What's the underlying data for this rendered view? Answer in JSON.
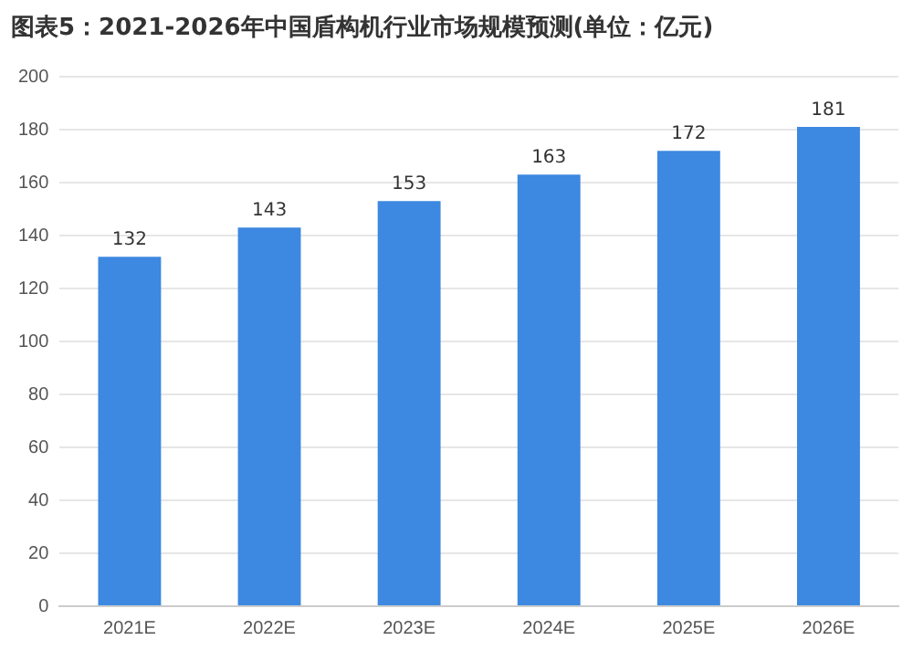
{
  "chart_data": {
    "type": "bar",
    "title": "图表5：2021-2026年中国盾构机行业市场规模预测(单位：亿元)",
    "categories": [
      "2021E",
      "2022E",
      "2023E",
      "2024E",
      "2025E",
      "2026E"
    ],
    "values": [
      132,
      143,
      153,
      163,
      172,
      181
    ],
    "color": "#3d88e0",
    "ylim": [
      0,
      200
    ],
    "yticks": [
      0,
      20,
      40,
      60,
      80,
      100,
      120,
      140,
      160,
      180,
      200
    ],
    "grid": "y",
    "data_labels": true
  }
}
